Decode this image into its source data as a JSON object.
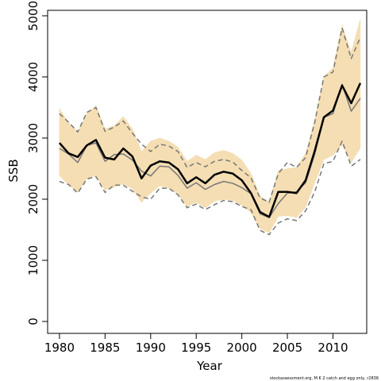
{
  "chart_data": {
    "type": "line",
    "xlabel": "Year",
    "ylabel": "SSB",
    "footnote": "stockassessment.org, M K 2 catch and egg only, r2836",
    "x": [
      1980,
      1981,
      1982,
      1983,
      1984,
      1985,
      1986,
      1987,
      1988,
      1989,
      1990,
      1991,
      1992,
      1993,
      1994,
      1995,
      1996,
      1997,
      1998,
      1999,
      2000,
      2001,
      2002,
      2003,
      2004,
      2005,
      2006,
      2007,
      2008,
      2009,
      2010,
      2011,
      2012,
      2013
    ],
    "xlim": [
      1978.7,
      2013.7
    ],
    "xticks": [
      1980,
      1985,
      1990,
      1995,
      2000,
      2005,
      2010
    ],
    "ylim": [
      -195,
      5090
    ],
    "yticks": [
      0,
      1000,
      2000,
      3000,
      4000,
      5000
    ],
    "band": {
      "color": "#f5deb3",
      "upper": [
        3480,
        3250,
        3100,
        3400,
        3530,
        3150,
        3200,
        3350,
        3150,
        2780,
        2950,
        3000,
        2950,
        2850,
        2620,
        2720,
        2650,
        2760,
        2800,
        2750,
        2640,
        2420,
        2050,
        1960,
        2470,
        2500,
        2520,
        2750,
        3300,
        4000,
        4150,
        4850,
        4400,
        4950
      ],
      "lower": [
        2380,
        2240,
        2120,
        2340,
        2380,
        2150,
        2200,
        2250,
        2170,
        1950,
        2100,
        2220,
        2180,
        2080,
        1880,
        1950,
        1860,
        1970,
        2000,
        1980,
        1900,
        1780,
        1520,
        1450,
        1720,
        1730,
        1700,
        1870,
        2270,
        2650,
        2720,
        2890,
        2600,
        2840
      ]
    },
    "series": [
      {
        "color": "#777777",
        "dashed": true,
        "width": 1.5,
        "values": [
          3400,
          3260,
          3100,
          3420,
          3500,
          3110,
          3180,
          3280,
          3080,
          2900,
          2780,
          2900,
          2870,
          2780,
          2520,
          2600,
          2530,
          2620,
          2650,
          2610,
          2470,
          2350,
          2020,
          1950,
          2420,
          2600,
          2520,
          2680,
          3260,
          4000,
          4080,
          4800,
          4300,
          4650
        ]
      },
      {
        "color": "#777777",
        "dashed": true,
        "width": 1.5,
        "values": [
          2290,
          2240,
          2100,
          2330,
          2370,
          2110,
          2230,
          2230,
          2130,
          2040,
          2000,
          2180,
          2180,
          2070,
          1860,
          1920,
          1830,
          1910,
          1980,
          1960,
          1880,
          1830,
          1490,
          1420,
          1610,
          1680,
          1650,
          1810,
          2120,
          2580,
          2620,
          2950,
          2540,
          2650
        ]
      },
      {
        "color": "#777777",
        "dashed": false,
        "width": 1.5,
        "values": [
          2830,
          2740,
          2600,
          2880,
          2920,
          2620,
          2730,
          2740,
          2640,
          2460,
          2380,
          2540,
          2530,
          2390,
          2180,
          2270,
          2160,
          2240,
          2290,
          2260,
          2190,
          2090,
          1760,
          1700,
          1930,
          2100,
          2120,
          2270,
          2740,
          3340,
          3400,
          3880,
          3440,
          3650
        ]
      },
      {
        "color": "#000000",
        "dashed": false,
        "width": 2.5,
        "values": [
          2920,
          2750,
          2690,
          2880,
          2970,
          2680,
          2650,
          2830,
          2700,
          2340,
          2550,
          2620,
          2600,
          2490,
          2260,
          2360,
          2260,
          2400,
          2450,
          2420,
          2310,
          2100,
          1790,
          1710,
          2120,
          2120,
          2100,
          2310,
          2790,
          3340,
          3450,
          3860,
          3570,
          3900
        ]
      }
    ]
  }
}
